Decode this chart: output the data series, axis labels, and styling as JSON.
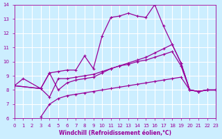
{
  "background_color": "#cceeff",
  "grid_color": "#ffffff",
  "line_color": "#990099",
  "xlabel": "Windchill (Refroidissement éolien,°C)",
  "xlim": [
    0,
    23
  ],
  "ylim": [
    6,
    14
  ],
  "xticks": [
    0,
    1,
    2,
    3,
    4,
    5,
    6,
    7,
    8,
    9,
    10,
    11,
    12,
    13,
    14,
    15,
    16,
    17,
    18,
    19,
    20,
    21,
    22,
    23
  ],
  "yticks": [
    6,
    7,
    8,
    9,
    10,
    11,
    12,
    13,
    14
  ],
  "lines": [
    {
      "x": [
        0,
        1,
        3,
        4,
        5,
        6,
        7,
        8,
        9,
        10,
        11,
        12,
        13,
        14,
        15,
        16,
        17,
        18,
        19,
        20,
        21,
        22,
        23
      ],
      "y": [
        8.3,
        8.8,
        8.1,
        9.2,
        9.3,
        9.4,
        9.4,
        10.4,
        9.5,
        11.8,
        13.1,
        13.2,
        13.4,
        13.2,
        13.1,
        14.0,
        12.5,
        11.2,
        9.9,
        8.0,
        7.9,
        8.0,
        8.0
      ]
    },
    {
      "x": [
        0,
        3,
        4,
        5,
        6,
        7,
        8,
        9,
        10,
        11,
        12,
        13,
        14,
        15,
        16,
        17,
        18,
        19,
        20,
        21,
        22,
        23
      ],
      "y": [
        8.3,
        8.1,
        9.2,
        8.0,
        8.5,
        8.7,
        8.8,
        8.9,
        9.2,
        9.5,
        9.7,
        9.9,
        10.1,
        10.3,
        10.6,
        10.9,
        11.2,
        9.9,
        8.0,
        7.9,
        8.0,
        8.0
      ]
    },
    {
      "x": [
        0,
        3,
        4,
        5,
        6,
        7,
        8,
        9,
        10,
        11,
        12,
        13,
        14,
        15,
        16,
        17,
        18,
        19,
        20,
        21,
        22,
        23
      ],
      "y": [
        8.3,
        8.1,
        7.5,
        8.8,
        8.8,
        8.9,
        9.0,
        9.1,
        9.3,
        9.5,
        9.7,
        9.8,
        10.0,
        10.1,
        10.3,
        10.5,
        10.7,
        9.7,
        8.0,
        7.9,
        8.0,
        8.0
      ]
    },
    {
      "x": [
        3,
        4,
        5,
        6,
        7,
        8,
        9,
        10,
        11,
        12,
        13,
        14,
        15,
        16,
        17,
        18,
        19,
        20,
        21,
        22,
        23
      ],
      "y": [
        6.1,
        7.0,
        7.4,
        7.6,
        7.7,
        7.8,
        7.9,
        8.0,
        8.1,
        8.2,
        8.3,
        8.4,
        8.5,
        8.6,
        8.7,
        8.8,
        8.9,
        8.0,
        7.9,
        8.0,
        8.0
      ]
    }
  ]
}
